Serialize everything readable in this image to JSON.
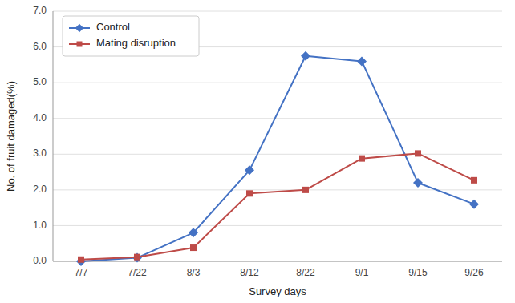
{
  "chart_data": {
    "type": "line",
    "x_label": "Survey days",
    "y_label": "No. of fruit damaged(%)",
    "categories": [
      "7/7",
      "7/22",
      "8/3",
      "8/12",
      "8/22",
      "9/1",
      "9/15",
      "9/26"
    ],
    "series": [
      {
        "name": "Control",
        "color": "#4472C4",
        "marker": "diamond",
        "values": [
          0.0,
          0.1,
          0.8,
          2.55,
          5.75,
          5.6,
          2.2,
          1.6
        ]
      },
      {
        "name": "Mating disruption",
        "color": "#BE4B48",
        "marker": "square",
        "values": [
          0.05,
          0.12,
          0.38,
          1.9,
          2.0,
          2.88,
          3.02,
          2.27
        ]
      }
    ],
    "ylim": [
      0.0,
      7.0
    ],
    "yticks": [
      {
        "value": 0.0,
        "label": "0.0"
      },
      {
        "value": 1.0,
        "label": "1.0"
      },
      {
        "value": 2.0,
        "label": "2.0"
      },
      {
        "value": 3.0,
        "label": "3.0"
      },
      {
        "value": 4.0,
        "label": "4.0"
      },
      {
        "value": 5.0,
        "label": "5.0"
      },
      {
        "value": 6.0,
        "label": "6.0"
      },
      {
        "value": 7.0,
        "label": "7.0"
      }
    ],
    "grid": true,
    "legend": "upper-left"
  }
}
